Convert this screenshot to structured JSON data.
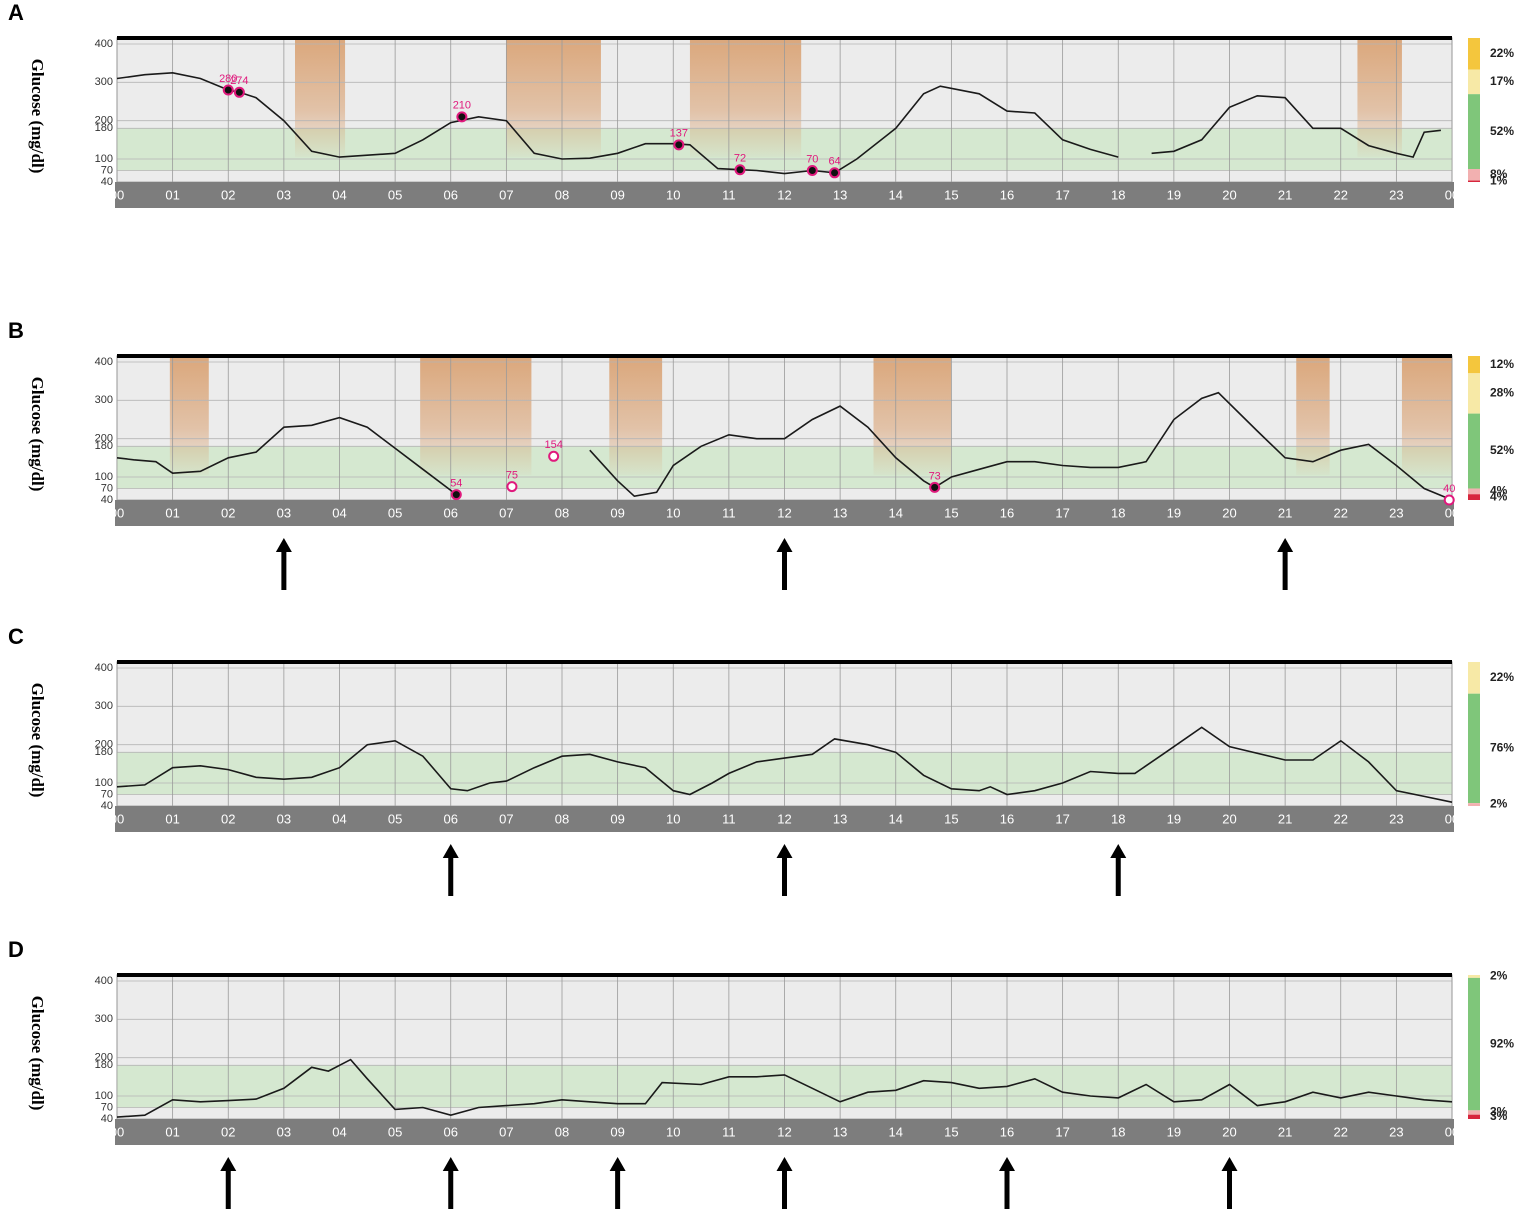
{
  "chart_data": [
    {
      "type": "line",
      "panel_label": "A",
      "y_label": "Glucose (mg/dl)",
      "x": [
        0,
        0.5,
        1,
        1.5,
        2,
        2.2,
        2.5,
        3,
        3.5,
        4,
        4.5,
        5,
        5.5,
        6,
        6.5,
        7,
        7.5,
        8,
        8.5,
        9,
        9.5,
        10,
        10.3,
        10.8,
        11.2,
        11.5,
        12,
        12.5,
        12.9,
        13.3,
        14,
        14.5,
        14.8,
        15.5,
        16,
        16.5,
        17,
        17.5,
        18,
        18.3,
        18.6,
        19,
        19.5,
        20,
        20.5,
        21,
        21.5,
        22,
        22.5,
        23,
        23.3,
        23.5,
        23.8
      ],
      "values": [
        310,
        320,
        325,
        310,
        280,
        274,
        260,
        200,
        120,
        105,
        110,
        115,
        150,
        195,
        210,
        200,
        115,
        100,
        102,
        115,
        140,
        140,
        137,
        75,
        72,
        70,
        62,
        70,
        64,
        100,
        180,
        270,
        290,
        270,
        225,
        220,
        150,
        125,
        105,
        null,
        115,
        120,
        150,
        235,
        265,
        260,
        180,
        180,
        135,
        115,
        105,
        170,
        175
      ],
      "color": "#1a1a1a",
      "xlim": [
        0,
        24
      ],
      "ylim": [
        40,
        400
      ],
      "yticks": [
        400,
        300,
        200,
        180,
        100,
        70,
        40
      ],
      "grid": true,
      "target_range": [
        70,
        180
      ],
      "xticks": [
        {
          "value": 0,
          "label": "00"
        },
        {
          "value": 1,
          "label": "01"
        },
        {
          "value": 2,
          "label": "02"
        },
        {
          "value": 3,
          "label": "03"
        },
        {
          "value": 4,
          "label": "04"
        },
        {
          "value": 5,
          "label": "05"
        },
        {
          "value": 6,
          "label": "06"
        },
        {
          "value": 7,
          "label": "07"
        },
        {
          "value": 8,
          "label": "08"
        },
        {
          "value": 9,
          "label": "09"
        },
        {
          "value": 10,
          "label": "10"
        },
        {
          "value": 11,
          "label": "11"
        },
        {
          "value": 12,
          "label": "12"
        },
        {
          "value": 13,
          "label": "13"
        },
        {
          "value": 14,
          "label": "14"
        },
        {
          "value": 15,
          "label": "15"
        },
        {
          "value": 16,
          "label": "16"
        },
        {
          "value": 17,
          "label": "17"
        },
        {
          "value": 18,
          "label": "18"
        },
        {
          "value": 19,
          "label": "19"
        },
        {
          "value": 20,
          "label": "20"
        },
        {
          "value": 21,
          "label": "21"
        },
        {
          "value": 22,
          "label": "22"
        },
        {
          "value": 23,
          "label": "23"
        },
        {
          "value": 24,
          "label": "00"
        }
      ],
      "shaded_periods": [
        [
          3.2,
          4.1
        ],
        [
          7.0,
          8.7
        ],
        [
          10.3,
          12.3
        ],
        [
          22.3,
          23.1
        ]
      ],
      "markers": {
        "x": [
          2.0,
          2.2,
          6.2,
          10.1,
          11.2,
          12.5,
          12.9
        ],
        "values": [
          280,
          274,
          210,
          137,
          72,
          70,
          64
        ],
        "filled": [
          true,
          true,
          true,
          true,
          true,
          true,
          true
        ],
        "color": "#e0197d"
      },
      "percent_bar": {
        "values": [
          22,
          17,
          52,
          8,
          1
        ],
        "value_labels": [
          "22%",
          "17%",
          "52%",
          "8%",
          "1%"
        ],
        "colors": [
          "#f4c63d",
          "#f7e9a6",
          "#7fc67a",
          "#f2b0b0",
          "#d7263d"
        ]
      },
      "arrows_x": []
    },
    {
      "type": "line",
      "panel_label": "B",
      "y_label": "Glucose (mg/dl)",
      "x": [
        0,
        0.3,
        0.7,
        1,
        1.5,
        2,
        2.5,
        3,
        3.5,
        4,
        4.5,
        5,
        5.5,
        6,
        6.1,
        7,
        8.5,
        9,
        9.3,
        9.7,
        10,
        10.5,
        11,
        11.5,
        12,
        12.5,
        13,
        13.5,
        14,
        14.5,
        14.7,
        15,
        15.5,
        16,
        16.5,
        17,
        17.5,
        18,
        18.5,
        19,
        19.5,
        19.8,
        20.5,
        21,
        21.5,
        22,
        22.5,
        23,
        23.5,
        24
      ],
      "values": [
        150,
        145,
        140,
        110,
        115,
        150,
        165,
        230,
        235,
        255,
        230,
        175,
        120,
        65,
        54,
        null,
        170,
        90,
        50,
        60,
        130,
        180,
        210,
        200,
        200,
        250,
        285,
        230,
        150,
        90,
        73,
        100,
        120,
        140,
        140,
        130,
        125,
        125,
        140,
        250,
        305,
        320,
        220,
        150,
        140,
        170,
        185,
        130,
        70,
        40
      ],
      "color": "#1a1a1a",
      "xlim": [
        0,
        24
      ],
      "ylim": [
        40,
        400
      ],
      "yticks": [
        400,
        300,
        200,
        180,
        100,
        70,
        40
      ],
      "grid": true,
      "target_range": [
        70,
        180
      ],
      "xticks": [
        {
          "value": 0,
          "label": "00"
        },
        {
          "value": 1,
          "label": "01"
        },
        {
          "value": 2,
          "label": "02"
        },
        {
          "value": 3,
          "label": "03"
        },
        {
          "value": 4,
          "label": "04"
        },
        {
          "value": 5,
          "label": "05"
        },
        {
          "value": 6,
          "label": "06"
        },
        {
          "value": 7,
          "label": "07"
        },
        {
          "value": 8,
          "label": "08"
        },
        {
          "value": 9,
          "label": "09"
        },
        {
          "value": 10,
          "label": "10"
        },
        {
          "value": 11,
          "label": "11"
        },
        {
          "value": 12,
          "label": "12"
        },
        {
          "value": 13,
          "label": "13"
        },
        {
          "value": 14,
          "label": "14"
        },
        {
          "value": 15,
          "label": "15"
        },
        {
          "value": 16,
          "label": "16"
        },
        {
          "value": 17,
          "label": "17"
        },
        {
          "value": 18,
          "label": "18"
        },
        {
          "value": 19,
          "label": "19"
        },
        {
          "value": 20,
          "label": "20"
        },
        {
          "value": 21,
          "label": "21"
        },
        {
          "value": 22,
          "label": "22"
        },
        {
          "value": 23,
          "label": "23"
        },
        {
          "value": 24,
          "label": "00"
        }
      ],
      "shaded_periods": [
        [
          0.95,
          1.65
        ],
        [
          5.45,
          7.45
        ],
        [
          8.85,
          9.8
        ],
        [
          13.6,
          15.0
        ],
        [
          21.2,
          21.8
        ],
        [
          23.1,
          24
        ]
      ],
      "markers": {
        "x": [
          6.1,
          7.1,
          7.85,
          14.7,
          23.95
        ],
        "values": [
          54,
          75,
          154,
          73,
          40
        ],
        "filled": [
          true,
          false,
          false,
          true,
          false
        ],
        "color": "#e0197d"
      },
      "percent_bar": {
        "values": [
          12,
          28,
          52,
          4,
          4
        ],
        "value_labels": [
          "12%",
          "28%",
          "52%",
          "4%",
          "4%"
        ],
        "colors": [
          "#f4c63d",
          "#f7e9a6",
          "#7fc67a",
          "#f2b0b0",
          "#d7263d"
        ]
      },
      "arrows_x": [
        3,
        12,
        21
      ]
    },
    {
      "type": "line",
      "panel_label": "C",
      "y_label": "Glucose (mg/dl)",
      "x": [
        0,
        0.5,
        1,
        1.5,
        2,
        2.5,
        3,
        3.5,
        4,
        4.5,
        5,
        5.5,
        6,
        6.3,
        6.7,
        7,
        7.5,
        8,
        8.5,
        9,
        9.5,
        10,
        10.3,
        10.7,
        11,
        11.5,
        12,
        12.5,
        12.9,
        13.5,
        14,
        14.5,
        15,
        15.5,
        15.7,
        16,
        16.5,
        17,
        17.5,
        18,
        18.3,
        18.8,
        19.5,
        20,
        21,
        21.5,
        22,
        22.5,
        23,
        23.5,
        24
      ],
      "values": [
        90,
        95,
        140,
        145,
        135,
        115,
        110,
        115,
        140,
        200,
        210,
        170,
        85,
        80,
        100,
        105,
        140,
        170,
        175,
        155,
        140,
        80,
        70,
        100,
        125,
        155,
        165,
        175,
        215,
        200,
        180,
        120,
        85,
        80,
        90,
        70,
        80,
        100,
        130,
        125,
        125,
        175,
        245,
        195,
        160,
        160,
        210,
        155,
        80,
        65,
        50
      ],
      "color": "#1a1a1a",
      "xlim": [
        0,
        24
      ],
      "ylim": [
        40,
        400
      ],
      "yticks": [
        400,
        300,
        200,
        180,
        100,
        70,
        40
      ],
      "grid": true,
      "target_range": [
        70,
        180
      ],
      "xticks": [
        {
          "value": 0,
          "label": "00"
        },
        {
          "value": 1,
          "label": "01"
        },
        {
          "value": 2,
          "label": "02"
        },
        {
          "value": 3,
          "label": "03"
        },
        {
          "value": 4,
          "label": "04"
        },
        {
          "value": 5,
          "label": "05"
        },
        {
          "value": 6,
          "label": "06"
        },
        {
          "value": 7,
          "label": "07"
        },
        {
          "value": 8,
          "label": "08"
        },
        {
          "value": 9,
          "label": "09"
        },
        {
          "value": 10,
          "label": "10"
        },
        {
          "value": 11,
          "label": "11"
        },
        {
          "value": 12,
          "label": "12"
        },
        {
          "value": 13,
          "label": "13"
        },
        {
          "value": 14,
          "label": "14"
        },
        {
          "value": 15,
          "label": "15"
        },
        {
          "value": 16,
          "label": "16"
        },
        {
          "value": 17,
          "label": "17"
        },
        {
          "value": 18,
          "label": "18"
        },
        {
          "value": 19,
          "label": "19"
        },
        {
          "value": 20,
          "label": "20"
        },
        {
          "value": 21,
          "label": "21"
        },
        {
          "value": 22,
          "label": "22"
        },
        {
          "value": 23,
          "label": "23"
        },
        {
          "value": 24,
          "label": "00"
        }
      ],
      "shaded_periods": [],
      "markers": {
        "x": [],
        "values": [],
        "filled": [],
        "color": "#e0197d"
      },
      "percent_bar": {
        "values": [
          22,
          76,
          2
        ],
        "value_labels": [
          "22%",
          "76%",
          "2%"
        ],
        "colors": [
          "#f7e9a6",
          "#7fc67a",
          "#f2b0b0"
        ]
      },
      "arrows_x": [
        6,
        12,
        18
      ]
    },
    {
      "type": "line",
      "panel_label": "D",
      "y_label": "Glucose (mg/dl)",
      "x": [
        0,
        0.5,
        1,
        1.5,
        2,
        2.5,
        3,
        3.5,
        3.8,
        4.2,
        4.5,
        5,
        5.5,
        6,
        6.5,
        7,
        7.5,
        8,
        8.5,
        9,
        9.5,
        9.8,
        10.5,
        11,
        11.5,
        12,
        12.5,
        13,
        13.5,
        14,
        14.5,
        15,
        15.5,
        16,
        16.5,
        17,
        17.5,
        18,
        18.5,
        19,
        19.5,
        20,
        20.5,
        21,
        21.5,
        22,
        22.5,
        23,
        23.5,
        24
      ],
      "values": [
        45,
        50,
        90,
        85,
        88,
        92,
        120,
        175,
        165,
        195,
        145,
        65,
        70,
        50,
        70,
        75,
        80,
        90,
        85,
        80,
        80,
        135,
        130,
        150,
        150,
        155,
        120,
        85,
        110,
        115,
        140,
        135,
        120,
        125,
        145,
        110,
        100,
        95,
        130,
        85,
        90,
        130,
        75,
        85,
        110,
        95,
        110,
        100,
        90,
        85
      ],
      "color": "#1a1a1a",
      "xlim": [
        0,
        24
      ],
      "ylim": [
        40,
        400
      ],
      "yticks": [
        400,
        300,
        200,
        180,
        100,
        70,
        40
      ],
      "grid": true,
      "target_range": [
        70,
        180
      ],
      "xticks": [
        {
          "value": 0,
          "label": "00"
        },
        {
          "value": 1,
          "label": "01"
        },
        {
          "value": 2,
          "label": "02"
        },
        {
          "value": 3,
          "label": "03"
        },
        {
          "value": 4,
          "label": "04"
        },
        {
          "value": 5,
          "label": "05"
        },
        {
          "value": 6,
          "label": "06"
        },
        {
          "value": 7,
          "label": "07"
        },
        {
          "value": 8,
          "label": "08"
        },
        {
          "value": 9,
          "label": "09"
        },
        {
          "value": 10,
          "label": "10"
        },
        {
          "value": 11,
          "label": "11"
        },
        {
          "value": 12,
          "label": "12"
        },
        {
          "value": 13,
          "label": "13"
        },
        {
          "value": 14,
          "label": "14"
        },
        {
          "value": 15,
          "label": "15"
        },
        {
          "value": 16,
          "label": "16"
        },
        {
          "value": 17,
          "label": "17"
        },
        {
          "value": 18,
          "label": "18"
        },
        {
          "value": 19,
          "label": "19"
        },
        {
          "value": 20,
          "label": "20"
        },
        {
          "value": 21,
          "label": "21"
        },
        {
          "value": 22,
          "label": "22"
        },
        {
          "value": 23,
          "label": "23"
        },
        {
          "value": 24,
          "label": "00"
        }
      ],
      "shaded_periods": [],
      "markers": {
        "x": [],
        "values": [],
        "filled": [],
        "color": "#e0197d"
      },
      "percent_bar": {
        "values": [
          2,
          92,
          3,
          3
        ],
        "value_labels": [
          "2%",
          "92%",
          "3%",
          "3%"
        ],
        "colors": [
          "#f7e9a6",
          "#7fc67a",
          "#f2b0b0",
          "#d7263d"
        ]
      },
      "arrows_x": [
        2,
        6,
        9,
        12,
        16,
        20
      ]
    }
  ]
}
